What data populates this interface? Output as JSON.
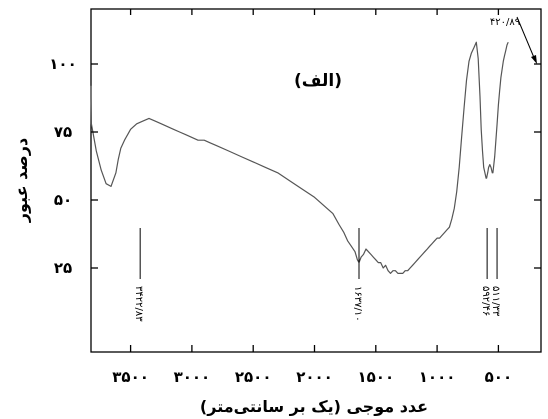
{
  "chart_data": {
    "type": "line",
    "title": "(الف)",
    "xlabel": "عدد موجی (یک بر سانتی‌متر)",
    "ylabel": "درصد عبور",
    "x_reversed": true,
    "xlim": [
      4000,
      400
    ],
    "ylim": [
      0,
      115
    ],
    "x_ticks": [
      {
        "value": 3500,
        "label": "۳۵۰۰"
      },
      {
        "value": 3000,
        "label": "۳۰۰۰"
      },
      {
        "value": 2500,
        "label": "۲۵۰۰"
      },
      {
        "value": 2000,
        "label": "۲۰۰۰"
      },
      {
        "value": 1500,
        "label": "۱۵۰۰"
      },
      {
        "value": 1000,
        "label": "۱۰۰۰"
      },
      {
        "value": 500,
        "label": "۵۰۰"
      }
    ],
    "y_ticks": [
      {
        "value": 100,
        "label": "۱۰۰"
      },
      {
        "value": 75,
        "label": "۷۵"
      },
      {
        "value": 50,
        "label": "۵۰"
      },
      {
        "value": 25,
        "label": "۲۵"
      }
    ],
    "series": [
      {
        "color": "#555555",
        "x": [
          3880,
          3860,
          3820,
          3780,
          3740,
          3700,
          3660,
          3620,
          3600,
          3580,
          3550,
          3500,
          3450,
          3400,
          3350,
          3300,
          3250,
          3200,
          3150,
          3100,
          3050,
          3000,
          2950,
          2900,
          2850,
          2800,
          2700,
          2600,
          2500,
          2400,
          2300,
          2200,
          2100,
          2000,
          1950,
          1900,
          1850,
          1800,
          1760,
          1730,
          1700,
          1670,
          1650,
          1637,
          1620,
          1600,
          1580,
          1560,
          1540,
          1520,
          1500,
          1480,
          1460,
          1440,
          1420,
          1400,
          1380,
          1360,
          1340,
          1320,
          1300,
          1280,
          1260,
          1240,
          1220,
          1200,
          1180,
          1160,
          1140,
          1120,
          1100,
          1080,
          1060,
          1040,
          1020,
          1000,
          980,
          960,
          940,
          920,
          900,
          880,
          860,
          840,
          820,
          800,
          780,
          760,
          740,
          720,
          700,
          680,
          665,
          650,
          640,
          630,
          620,
          610,
          600,
          596,
          592,
          587,
          580,
          570,
          560,
          550,
          545,
          540,
          530,
          520,
          511,
          500,
          490,
          480,
          470,
          460,
          450,
          440,
          430,
          420
        ],
        "y": [
          92,
          88,
          78,
          68,
          61,
          56,
          55,
          60,
          65,
          69,
          72,
          76,
          78,
          79,
          80,
          79,
          78,
          77,
          76,
          75,
          74,
          73,
          72,
          72,
          71,
          70,
          68,
          66,
          64,
          62,
          60,
          57,
          54,
          51,
          49,
          47,
          45,
          41,
          38,
          35,
          33,
          31,
          28,
          27,
          29,
          30,
          32,
          31,
          30,
          29,
          28,
          27,
          27,
          25,
          26,
          24,
          23,
          24,
          24,
          23,
          23,
          23,
          24,
          24,
          25,
          26,
          27,
          28,
          29,
          30,
          31,
          32,
          33,
          34,
          35,
          36,
          36,
          37,
          38,
          39,
          40,
          43,
          47,
          53,
          62,
          73,
          84,
          94,
          101,
          104,
          106,
          108,
          102,
          88,
          76,
          68,
          62,
          60,
          58,
          58,
          59,
          60,
          62,
          63,
          62,
          60,
          60,
          62,
          66,
          72,
          78,
          85,
          90,
          95,
          98,
          101,
          103,
          105,
          107,
          108
        ]
      }
    ],
    "annotations": [
      {
        "label": "۳۴۲۲/۸۳",
        "x": 3422
      },
      {
        "label": "۱۶۳۷/۱۰",
        "x": 1637
      },
      {
        "label": "۵۹۲/۴۶",
        "x": 592
      },
      {
        "label": "۵۱۱/۳۳",
        "x": 511
      }
    ],
    "top_annotation": {
      "label": "۴۲۰/۸۹",
      "x": 421
    }
  }
}
